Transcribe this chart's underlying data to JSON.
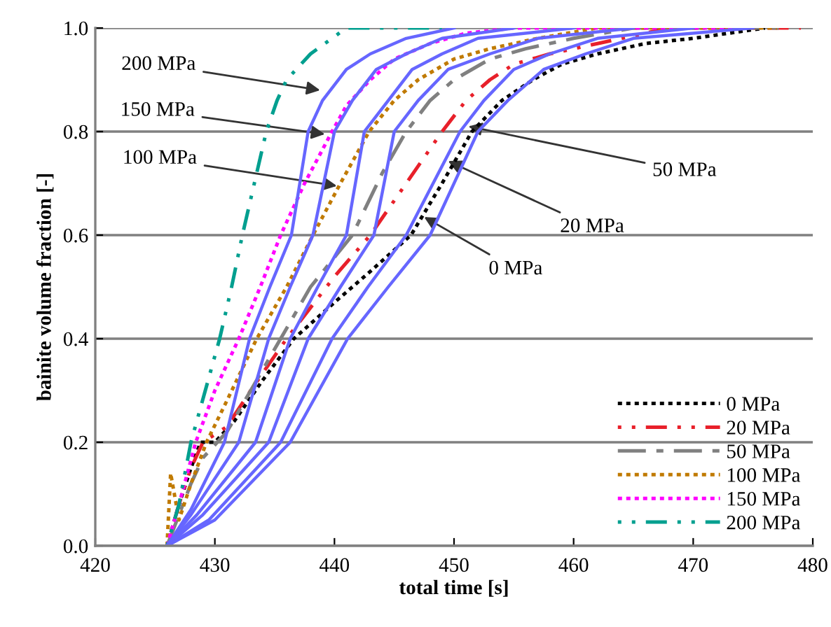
{
  "chart_data": {
    "type": "line",
    "xlabel": "total time [s]",
    "ylabel": "bainite volume fraction [-]",
    "xlim": [
      420,
      480
    ],
    "xticks": [
      420,
      430,
      440,
      450,
      460,
      470,
      480
    ],
    "ylim": [
      0,
      1
    ],
    "yticks": [
      {
        "value": 0,
        "label": "0.0"
      },
      {
        "value": 0.2,
        "label": "0.2"
      },
      {
        "value": 0.4,
        "label": "0.4"
      },
      {
        "value": 0.6,
        "label": "0.6"
      },
      {
        "value": 0.8,
        "label": "0.8"
      },
      {
        "value": 1,
        "label": "1.0"
      }
    ],
    "grid": "y",
    "legend": "bottom right",
    "marker": "none",
    "series": [
      {
        "name": "0 MPa",
        "color": "#000000",
        "line_style": "dotted",
        "x": [
          426,
          427,
          428,
          428.8,
          430,
          431.6,
          434,
          436.6,
          440,
          443,
          446.4,
          449,
          451.5,
          454,
          456.6,
          459,
          462,
          466,
          470,
          476
        ],
        "values": [
          0,
          0.08,
          0.15,
          0.2,
          0.2,
          0.24,
          0.32,
          0.4,
          0.47,
          0.53,
          0.6,
          0.7,
          0.8,
          0.86,
          0.9,
          0.93,
          0.95,
          0.97,
          0.98,
          1
        ]
      },
      {
        "name": "20 MPa",
        "color": "#e8202a",
        "line_style": "dashdot",
        "x": [
          426,
          427,
          428,
          429,
          431,
          433,
          436,
          440,
          443,
          446,
          449,
          451,
          453,
          455,
          458,
          462,
          468,
          479
        ],
        "values": [
          0,
          0.08,
          0.15,
          0.2,
          0.23,
          0.3,
          0.4,
          0.52,
          0.6,
          0.7,
          0.8,
          0.86,
          0.9,
          0.93,
          0.95,
          0.97,
          1,
          1
        ]
      },
      {
        "name": "50 MPa",
        "color": "#808080",
        "line_style": "dashed",
        "x": [
          426,
          427,
          428,
          429,
          431,
          433,
          435,
          438,
          441.5,
          444,
          446,
          448,
          450,
          453,
          456,
          460,
          465,
          478
        ],
        "values": [
          0,
          0.06,
          0.12,
          0.17,
          0.22,
          0.3,
          0.38,
          0.5,
          0.6,
          0.72,
          0.8,
          0.86,
          0.9,
          0.94,
          0.96,
          0.98,
          1,
          1
        ]
      },
      {
        "name": "100 MPa",
        "color": "#c07a00",
        "line_style": "dotted",
        "x": [
          426,
          426.3,
          427,
          428,
          429.3,
          431,
          433.5,
          436,
          438.2,
          440.5,
          442.9,
          445,
          447,
          450,
          453,
          457,
          462,
          477
        ],
        "values": [
          0,
          0.14,
          0.05,
          0.12,
          0.2,
          0.28,
          0.4,
          0.5,
          0.6,
          0.7,
          0.8,
          0.86,
          0.9,
          0.94,
          0.96,
          0.98,
          1,
          1
        ]
      },
      {
        "name": "150 MPa",
        "color": "#ff00ff",
        "line_style": "dotted",
        "x": [
          426,
          427,
          428.4,
          430,
          432,
          433.8,
          435.5,
          437.5,
          439.8,
          441,
          443,
          445,
          448,
          451,
          455,
          474
        ],
        "values": [
          0,
          0.08,
          0.2,
          0.3,
          0.4,
          0.5,
          0.6,
          0.7,
          0.8,
          0.85,
          0.9,
          0.94,
          0.97,
          0.99,
          1,
          1
        ]
      },
      {
        "name": "200 MPa",
        "color": "#009f8f",
        "line_style": "dashdot",
        "x": [
          426,
          427,
          428,
          429.2,
          430.4,
          431.4,
          432.3,
          433.3,
          434.3,
          435.2,
          436,
          438,
          441,
          449
        ],
        "values": [
          0,
          0.08,
          0.2,
          0.3,
          0.4,
          0.5,
          0.6,
          0.7,
          0.8,
          0.86,
          0.9,
          0.95,
          1,
          1
        ]
      },
      {
        "color": "#6666ff",
        "line_style": "solid",
        "x": [
          426,
          428,
          430.8,
          432.9,
          434.6,
          436.4,
          437.8,
          439,
          441,
          443,
          446,
          450
        ],
        "values": [
          0,
          0.07,
          0.2,
          0.4,
          0.5,
          0.6,
          0.8,
          0.86,
          0.92,
          0.95,
          0.98,
          1
        ]
      },
      {
        "color": "#6666ff",
        "line_style": "solid",
        "x": [
          426,
          428,
          432,
          434.5,
          436.3,
          438.2,
          440,
          441.5,
          443.5,
          446,
          449,
          455
        ],
        "values": [
          0,
          0.06,
          0.2,
          0.4,
          0.5,
          0.6,
          0.8,
          0.86,
          0.92,
          0.95,
          0.98,
          1
        ]
      },
      {
        "color": "#6666ff",
        "line_style": "solid",
        "x": [
          426,
          428.5,
          433.4,
          436.3,
          438.6,
          441,
          442.5,
          444.5,
          446.5,
          449,
          452,
          460
        ],
        "values": [
          0,
          0.06,
          0.2,
          0.4,
          0.5,
          0.6,
          0.8,
          0.86,
          0.92,
          0.95,
          0.98,
          1
        ]
      },
      {
        "color": "#6666ff",
        "line_style": "solid",
        "x": [
          426,
          429,
          434.5,
          437.8,
          440.5,
          443.3,
          445,
          447,
          449.5,
          453,
          457,
          465
        ],
        "values": [
          0,
          0.06,
          0.2,
          0.4,
          0.5,
          0.6,
          0.8,
          0.86,
          0.92,
          0.95,
          0.98,
          1
        ]
      },
      {
        "color": "#6666ff",
        "line_style": "solid",
        "x": [
          426,
          429.5,
          435.5,
          439.8,
          442.8,
          446,
          450.5,
          452.5,
          455,
          458,
          462,
          470
        ],
        "values": [
          0,
          0.05,
          0.2,
          0.4,
          0.5,
          0.6,
          0.8,
          0.86,
          0.92,
          0.95,
          0.98,
          1
        ]
      },
      {
        "color": "#6666ff",
        "line_style": "solid",
        "x": [
          426,
          430,
          436.3,
          441.1,
          444.5,
          448,
          452,
          454.5,
          457.5,
          461,
          465,
          475
        ],
        "values": [
          0,
          0.05,
          0.2,
          0.4,
          0.5,
          0.6,
          0.8,
          0.86,
          0.92,
          0.95,
          0.98,
          1
        ]
      }
    ],
    "annotations": [
      {
        "text": "200 MPa",
        "x": 438.8,
        "y": 0.88
      },
      {
        "text": "150 MPa",
        "x": 439.2,
        "y": 0.795
      },
      {
        "text": "100 MPa",
        "x": 440.2,
        "y": 0.695
      },
      {
        "text": "50 MPa",
        "x": 451.2,
        "y": 0.81
      },
      {
        "text": "20 MPa",
        "x": 449.5,
        "y": 0.743
      },
      {
        "text": "0 MPa",
        "x": 447.5,
        "y": 0.635
      }
    ]
  }
}
